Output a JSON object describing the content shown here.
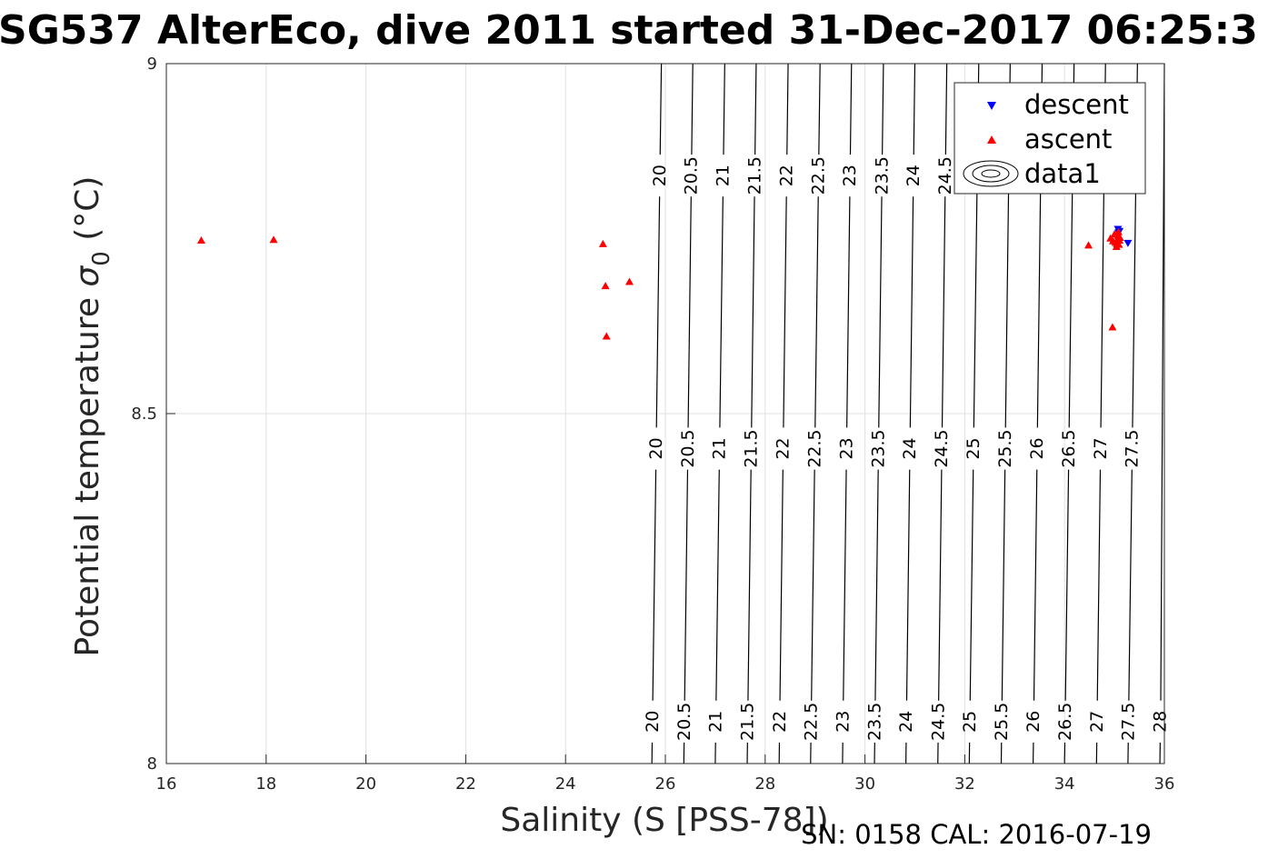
{
  "chart_data": {
    "type": "scatter",
    "title": "SG537 AlterEco, dive 2011 started 31-Dec-2017 06:25:3",
    "xlabel": "Salinity (S [PSS-78])",
    "ylabel_main": "Potential temperature ",
    "ylabel_sigma": "σ",
    "ylabel_sub": "0",
    "ylabel_unit": " (°C)",
    "xlim": [
      16,
      36
    ],
    "ylim": [
      8,
      9
    ],
    "x_ticks": [
      "16",
      "18",
      "20",
      "22",
      "24",
      "26",
      "28",
      "30",
      "32",
      "34",
      "36"
    ],
    "y_ticks": [
      "8",
      "8.5",
      "9"
    ],
    "grid": true,
    "legend_position": "top-right",
    "legend": [
      "descent",
      "ascent",
      "data1"
    ],
    "series": [
      {
        "name": "descent",
        "marker": "triangle-down",
        "color": "#0000ff",
        "points": [
          [
            35.07,
            8.763
          ],
          [
            35.27,
            8.743
          ],
          [
            35.08,
            8.758
          ],
          [
            35.1,
            8.76
          ]
        ]
      },
      {
        "name": "ascent",
        "marker": "triangle-up",
        "color": "#ff0000",
        "points": [
          [
            16.7,
            8.748
          ],
          [
            18.15,
            8.749
          ],
          [
            24.75,
            8.743
          ],
          [
            24.8,
            8.683
          ],
          [
            25.28,
            8.689
          ],
          [
            24.82,
            8.611
          ],
          [
            34.48,
            8.741
          ],
          [
            34.92,
            8.751
          ],
          [
            34.97,
            8.747
          ],
          [
            35.0,
            8.757
          ],
          [
            35.02,
            8.745
          ],
          [
            35.05,
            8.743
          ],
          [
            35.06,
            8.75
          ],
          [
            35.07,
            8.755
          ],
          [
            35.08,
            8.76
          ],
          [
            35.09,
            8.742
          ],
          [
            35.1,
            8.748
          ],
          [
            35.11,
            8.752
          ],
          [
            35.04,
            8.739
          ],
          [
            35.03,
            8.746
          ],
          [
            34.96,
            8.624
          ]
        ]
      }
    ],
    "density_contours": {
      "name": "data1",
      "levels": [
        "20",
        "20.5",
        "21",
        "21.5",
        "22",
        "22.5",
        "23",
        "23.5",
        "24",
        "24.5",
        "25",
        "25.5",
        "26",
        "26.5",
        "27",
        "27.5",
        "28"
      ],
      "lines": [
        {
          "label": "20",
          "s_top": 25.92,
          "s_bottom": 25.73,
          "label_y": [
            8.84,
            8.45,
            8.06
          ]
        },
        {
          "label": "20.5",
          "s_top": 26.55,
          "s_bottom": 26.37,
          "label_y": [
            8.84,
            8.45,
            8.06
          ]
        },
        {
          "label": "21",
          "s_top": 27.19,
          "s_bottom": 27.0,
          "label_y": [
            8.84,
            8.45,
            8.06
          ]
        },
        {
          "label": "21.5",
          "s_top": 27.82,
          "s_bottom": 27.64,
          "label_y": [
            8.84,
            8.45,
            8.06
          ]
        },
        {
          "label": "22",
          "s_top": 28.46,
          "s_bottom": 28.28,
          "label_y": [
            8.84,
            8.45,
            8.06
          ]
        },
        {
          "label": "22.5",
          "s_top": 29.1,
          "s_bottom": 28.91,
          "label_y": [
            8.84,
            8.45,
            8.06
          ]
        },
        {
          "label": "23",
          "s_top": 29.73,
          "s_bottom": 29.55,
          "label_y": [
            8.84,
            8.45,
            8.06
          ]
        },
        {
          "label": "23.5",
          "s_top": 30.37,
          "s_bottom": 30.19,
          "label_y": [
            8.84,
            8.45,
            8.06
          ]
        },
        {
          "label": "24",
          "s_top": 31.0,
          "s_bottom": 30.82,
          "label_y": [
            8.84,
            8.45,
            8.06
          ]
        },
        {
          "label": "24.5",
          "s_top": 31.64,
          "s_bottom": 31.46,
          "label_y": [
            8.84,
            8.45,
            8.06
          ]
        },
        {
          "label": "25",
          "s_top": 32.28,
          "s_bottom": 32.09,
          "label_y": [
            8.45,
            8.06
          ]
        },
        {
          "label": "25.5",
          "s_top": 32.91,
          "s_bottom": 32.73,
          "label_y": [
            8.45,
            8.06
          ]
        },
        {
          "label": "26",
          "s_top": 33.55,
          "s_bottom": 33.37,
          "label_y": [
            8.45,
            8.06
          ]
        },
        {
          "label": "26.5",
          "s_top": 34.19,
          "s_bottom": 34.0,
          "label_y": [
            8.45,
            8.06
          ]
        },
        {
          "label": "27",
          "s_top": 34.82,
          "s_bottom": 34.64,
          "label_y": [
            8.45,
            8.06
          ]
        },
        {
          "label": "27.5",
          "s_top": 35.46,
          "s_bottom": 35.27,
          "label_y": [
            8.45,
            8.06
          ]
        },
        {
          "label": "28",
          "s_top": 36.1,
          "s_bottom": 35.91,
          "label_y": [
            8.06
          ]
        }
      ]
    },
    "footer": "SN: 0158  CAL: 2016-07-19"
  }
}
